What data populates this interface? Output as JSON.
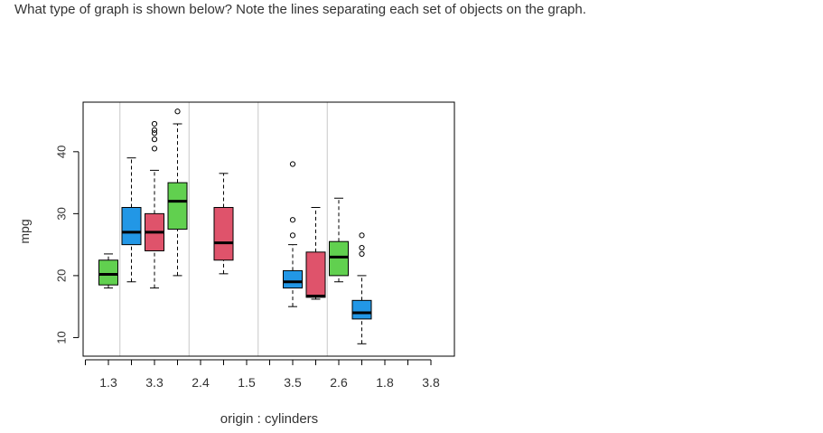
{
  "question": "What type of graph is shown below? Note the lines separating each set of objects on the graph.",
  "chart_data": {
    "type": "boxplot",
    "title": "",
    "xlabel": "origin : cylinders",
    "ylabel": "mpg",
    "ylim": [
      7,
      48
    ],
    "yticks": [
      10,
      20,
      30,
      40
    ],
    "x_tick_labels": [
      "1.3",
      "3.3",
      "2.4",
      "1.5",
      "3.5",
      "2.6",
      "1.8",
      "3.8"
    ],
    "separators_after_slot": [
      2.5,
      5.5,
      8.5,
      11.5
    ],
    "grid": false,
    "colors": {
      "green": "#61D04F",
      "red": "#DF536B",
      "blue": "#2297E6"
    },
    "boxes": [
      {
        "slot": 2,
        "color": "green",
        "wlo": 18,
        "q1": 18.5,
        "median": 20.2,
        "q3": 22.5,
        "whi": 23.5,
        "outliers": []
      },
      {
        "slot": 3,
        "color": "blue",
        "wlo": 19,
        "q1": 25,
        "median": 27,
        "q3": 31,
        "whi": 39,
        "outliers": []
      },
      {
        "slot": 4,
        "color": "red",
        "wlo": 18,
        "q1": 24,
        "median": 27,
        "q3": 30,
        "whi": 37,
        "outliers": [
          40.5,
          42,
          43,
          43.5,
          44.5
        ]
      },
      {
        "slot": 5,
        "color": "green",
        "wlo": 20,
        "q1": 27.5,
        "median": 32,
        "q3": 35,
        "whi": 44.5,
        "outliers": [
          46.5
        ]
      },
      {
        "slot": 7,
        "color": "red",
        "wlo": 20.3,
        "q1": 22.5,
        "median": 25.3,
        "q3": 31,
        "whi": 36.5,
        "outliers": []
      },
      {
        "slot": 10,
        "color": "blue",
        "wlo": 15,
        "q1": 18,
        "median": 19,
        "q3": 20.8,
        "whi": 25,
        "outliers": [
          26.5,
          29,
          38
        ]
      },
      {
        "slot": 11,
        "color": "red",
        "wlo": 16.2,
        "q1": 16.5,
        "median": 16.7,
        "q3": 23.8,
        "whi": 31,
        "outliers": []
      },
      {
        "slot": 12,
        "color": "green",
        "wlo": 19,
        "q1": 20,
        "median": 23,
        "q3": 25.5,
        "whi": 32.5,
        "outliers": []
      },
      {
        "slot": 13,
        "color": "blue",
        "wlo": 9,
        "q1": 13,
        "median": 14,
        "q3": 16,
        "whi": 20,
        "outliers": [
          23.5,
          24.5,
          26.5
        ]
      }
    ]
  }
}
